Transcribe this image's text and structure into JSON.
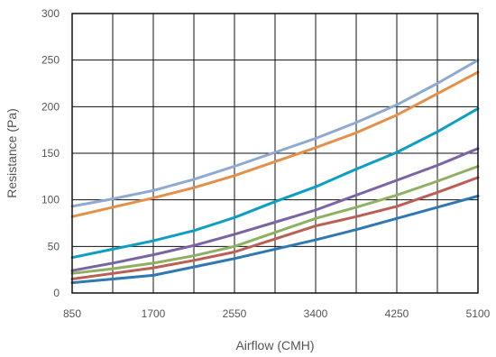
{
  "chart_data": {
    "type": "line",
    "title": "",
    "xlabel": "Airflow (CMH)",
    "ylabel": "Resistance (Pa)",
    "x": [
      850,
      1275,
      1700,
      2125,
      2550,
      2975,
      3400,
      3825,
      4250,
      4675,
      5100
    ],
    "x_ticks": [
      "850",
      "1700",
      "2550",
      "3400",
      "4250",
      "5100"
    ],
    "y_ticks": [
      "0",
      "50",
      "100",
      "150",
      "200",
      "250",
      "300"
    ],
    "xlim": [
      850,
      5100
    ],
    "ylim": [
      0,
      300
    ],
    "grid": true,
    "series": [
      {
        "color": "#8EAAD0",
        "values": [
          93,
          101,
          110,
          122,
          136,
          151,
          166,
          183,
          202,
          225,
          250
        ]
      },
      {
        "color": "#E3914A",
        "values": [
          82,
          92,
          102,
          113,
          126,
          141,
          156,
          172,
          191,
          214,
          237
        ]
      },
      {
        "color": "#0D9EC4",
        "values": [
          38,
          47,
          56,
          67,
          81,
          98,
          114,
          133,
          151,
          173,
          198
        ]
      },
      {
        "color": "#7A64A3",
        "values": [
          24,
          32,
          41,
          51,
          63,
          76,
          89,
          105,
          121,
          137,
          155
        ]
      },
      {
        "color": "#8FB061",
        "values": [
          21,
          26,
          32,
          40,
          50,
          65,
          80,
          92,
          105,
          120,
          136
        ]
      },
      {
        "color": "#BA5F54",
        "values": [
          15,
          21,
          27,
          35,
          44,
          58,
          72,
          82,
          93,
          108,
          124
        ]
      },
      {
        "color": "#2E78B4",
        "values": [
          11,
          15,
          19,
          28,
          37,
          47,
          57,
          68,
          80,
          92,
          104
        ]
      }
    ]
  }
}
